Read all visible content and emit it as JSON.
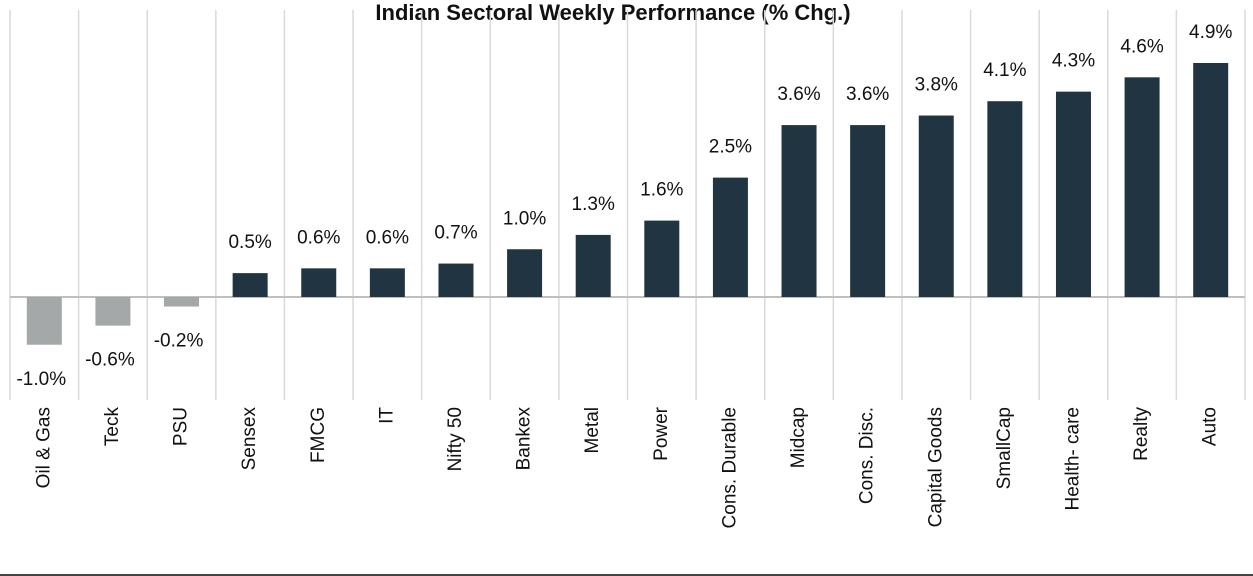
{
  "chart_data": {
    "type": "bar",
    "title": "Indian Sectoral Weekly Performance (% Chg.)",
    "categories": [
      "Oil & Gas",
      "Teck",
      "PSU",
      "Sensex",
      "FMCG",
      "IT",
      "Nifty 50",
      "Bankex",
      "Metal",
      "Power",
      "Cons. Durable",
      "Midcap",
      "Cons. Disc.",
      "Capital Goods",
      "SmallCap",
      "Health- care",
      "Realty",
      "Auto"
    ],
    "values": [
      -1.0,
      -0.6,
      -0.2,
      0.5,
      0.6,
      0.6,
      0.7,
      1.0,
      1.3,
      1.6,
      2.5,
      3.6,
      3.6,
      3.8,
      4.1,
      4.3,
      4.6,
      4.9
    ],
    "value_labels": [
      "-1.0%",
      "-0.6%",
      "-0.2%",
      "0.5%",
      "0.6%",
      "0.6%",
      "0.7%",
      "1.0%",
      "1.3%",
      "1.6%",
      "2.5%",
      "3.6%",
      "3.6%",
      "3.8%",
      "4.1%",
      "4.3%",
      "4.6%",
      "4.9%"
    ],
    "color": "#203541",
    "negative_color": "#a5a8a9"
  }
}
